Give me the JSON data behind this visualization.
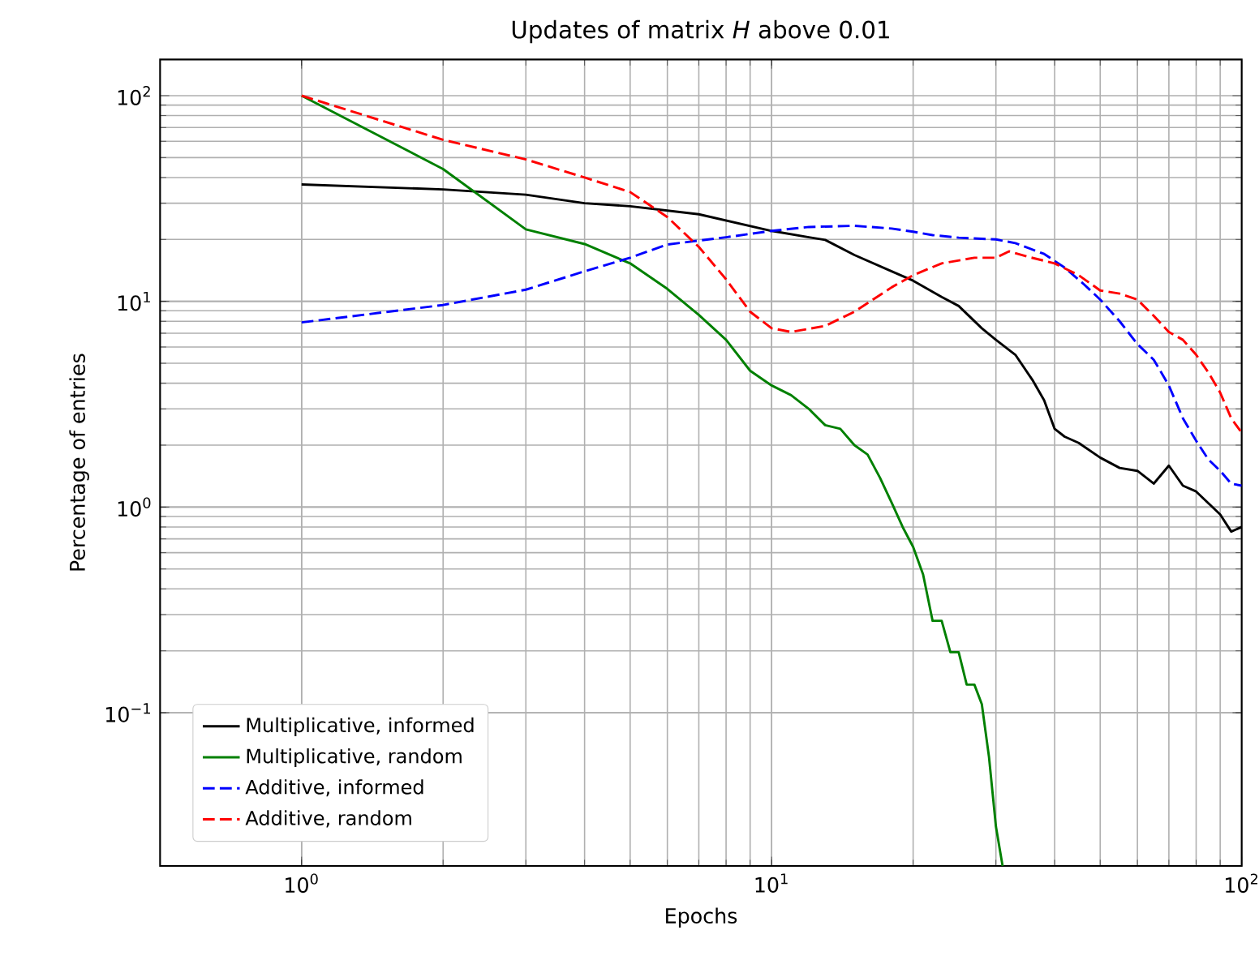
{
  "chart_data": {
    "type": "line",
    "title": "Updates of matrix *H* above 0.01",
    "xlabel": "Epochs",
    "ylabel": "Percentage of entries",
    "log": "xy",
    "grid": true,
    "legend": "bottom left",
    "xlim": [
      0.5,
      100
    ],
    "ylim": [
      0.018,
      150
    ],
    "xticks": [
      {
        "value": 1,
        "label": "10$^{0}$"
      },
      {
        "value": 10,
        "label": "10$^{1}$"
      },
      {
        "value": 100,
        "label": "10$^{2}$"
      }
    ],
    "yticks": [
      {
        "value": 0.1,
        "label": "10$^{−1}$"
      },
      {
        "value": 1,
        "label": "10$^{0}$"
      },
      {
        "value": 10,
        "label": "10$^{1}$"
      },
      {
        "value": 100,
        "label": "10$^{2}$"
      }
    ],
    "series": [
      {
        "name": "Multiplicative, informed",
        "color": "#000000",
        "line_style": "solid",
        "x": [
          1,
          2,
          3,
          4,
          5,
          7,
          10,
          12,
          13,
          15,
          18,
          20,
          23,
          25,
          28,
          30,
          33,
          36,
          38,
          40,
          42,
          45,
          50,
          55,
          60,
          65,
          70,
          75,
          80,
          90,
          95,
          100
        ],
        "values": [
          37,
          35,
          33,
          30,
          29,
          26.5,
          22,
          20.5,
          19.9,
          16.8,
          14,
          12.6,
          10.5,
          9.5,
          7.4,
          6.5,
          5.5,
          4.1,
          3.3,
          2.4,
          2.2,
          2.05,
          1.74,
          1.55,
          1.5,
          1.3,
          1.59,
          1.27,
          1.19,
          0.92,
          0.76,
          0.8
        ]
      },
      {
        "name": "Multiplicative, random",
        "color": "#008000",
        "line_style": "solid",
        "x": [
          1,
          2,
          3,
          4,
          5,
          6,
          7,
          8,
          9,
          10,
          11,
          12,
          13,
          14,
          15,
          16,
          17,
          18,
          19,
          20,
          21,
          22,
          23,
          24,
          25,
          26,
          27,
          28,
          29,
          30,
          31
        ],
        "values": [
          100,
          44,
          22.4,
          19,
          15.3,
          11.5,
          8.6,
          6.5,
          4.6,
          3.9,
          3.5,
          3.0,
          2.5,
          2.4,
          2.0,
          1.8,
          1.39,
          1.05,
          0.8,
          0.64,
          0.47,
          0.28,
          0.28,
          0.197,
          0.197,
          0.137,
          0.137,
          0.11,
          0.061,
          0.028,
          0.018
        ]
      },
      {
        "name": "Additive, informed",
        "color": "#0000ff",
        "line_style": "dashed",
        "x": [
          1,
          2,
          3,
          4,
          5,
          6,
          8,
          10,
          12,
          15,
          18,
          20,
          22,
          25,
          30,
          33,
          38,
          42,
          46,
          50,
          55,
          60,
          65,
          70,
          75,
          80,
          85,
          90,
          95,
          100
        ],
        "values": [
          7.9,
          9.6,
          11.4,
          14,
          16.3,
          18.9,
          20.5,
          22,
          23,
          23.3,
          22.6,
          21.8,
          21,
          20.4,
          20,
          19.2,
          17,
          14.6,
          12.2,
          10.2,
          8.0,
          6.2,
          5.2,
          3.9,
          2.7,
          2.1,
          1.7,
          1.5,
          1.3,
          1.27
        ]
      },
      {
        "name": "Additive, random",
        "color": "#ff0000",
        "line_style": "dashed",
        "x": [
          1,
          2,
          3,
          4,
          5,
          6,
          7,
          8,
          9,
          10,
          11,
          13,
          15,
          18,
          20,
          23,
          27,
          30,
          32,
          35,
          40,
          45,
          50,
          55,
          60,
          65,
          70,
          75,
          80,
          85,
          90,
          95,
          100
        ],
        "values": [
          100,
          61,
          49,
          40,
          34,
          25.7,
          18.4,
          12.8,
          8.9,
          7.4,
          7.1,
          7.6,
          8.9,
          11.7,
          13.4,
          15.3,
          16.3,
          16.3,
          17.5,
          16.5,
          15.3,
          13.4,
          11.3,
          10.9,
          10.2,
          8.5,
          7.1,
          6.5,
          5.5,
          4.5,
          3.6,
          2.7,
          2.3
        ]
      }
    ]
  }
}
